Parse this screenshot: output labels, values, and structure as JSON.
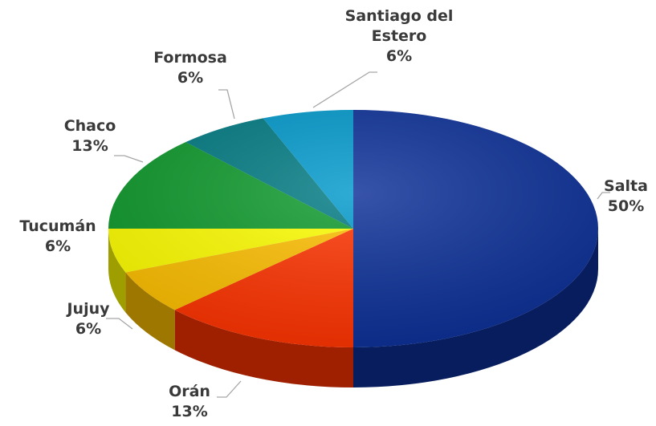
{
  "chart_data": {
    "type": "pie",
    "categories": [
      "Salta",
      "Orán",
      "Jujuy",
      "Tucumán",
      "Chaco",
      "Formosa",
      "Santiago del Estero"
    ],
    "values": [
      50,
      13,
      6,
      6,
      13,
      6,
      6
    ],
    "value_labels": [
      "50%",
      "13%",
      "6%",
      "6%",
      "13%",
      "6%",
      "6%"
    ],
    "colors": [
      "#0b2f97",
      "#ff3300",
      "#ffc000",
      "#ffff00",
      "#0e9a2c",
      "#007a82",
      "#0099cc"
    ]
  }
}
